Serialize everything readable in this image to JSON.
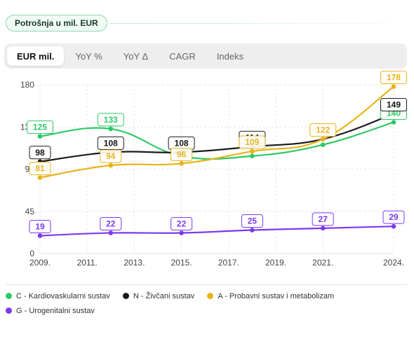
{
  "header": {
    "title": "Potrošnja u mil. EUR"
  },
  "tabs": [
    {
      "label": "EUR mil.",
      "active": true
    },
    {
      "label": "YoY %",
      "active": false
    },
    {
      "label": "YoY Δ",
      "active": false
    },
    {
      "label": "CAGR",
      "active": false
    },
    {
      "label": "Indeks",
      "active": false
    }
  ],
  "chart_data": {
    "type": "line",
    "title": "",
    "xlabel": "",
    "ylabel": "",
    "x": [
      2009,
      2012,
      2015,
      2018,
      2021,
      2024
    ],
    "x_ticks": [
      "2009.",
      "2011.",
      "2013.",
      "2015.",
      "2017.",
      "2019.",
      "2021.",
      "2024."
    ],
    "y_ticks": [
      "0",
      "45",
      "90",
      "135",
      "180"
    ],
    "ylim": [
      0,
      180
    ],
    "grid": true,
    "legend_position": "bottom",
    "series": [
      {
        "name": "C - Kardiovaskularni sustav",
        "color": "#2ec866",
        "values": [
          125,
          133,
          104,
          104,
          116,
          140
        ],
        "labels": [
          "125",
          "133",
          "",
          "",
          "",
          "140"
        ]
      },
      {
        "name": "N - Živčani sustav",
        "color": "#1a1a1a",
        "values": [
          98,
          108,
          108,
          114,
          122,
          149
        ],
        "labels": [
          "98",
          "108",
          "108",
          "114",
          "",
          "149"
        ]
      },
      {
        "name": "A - Probavni sustav i metabolizam",
        "color": "#e8b317",
        "values": [
          81,
          94,
          96,
          109,
          122,
          178
        ],
        "labels": [
          "81",
          "94",
          "96",
          "109",
          "122",
          "178"
        ]
      },
      {
        "name": "G - Urogenitalni sustav",
        "color": "#7c3aed",
        "values": [
          19,
          22,
          22,
          25,
          27,
          29
        ],
        "labels": [
          "19",
          "22",
          "22",
          "25",
          "27",
          "29"
        ]
      }
    ]
  }
}
